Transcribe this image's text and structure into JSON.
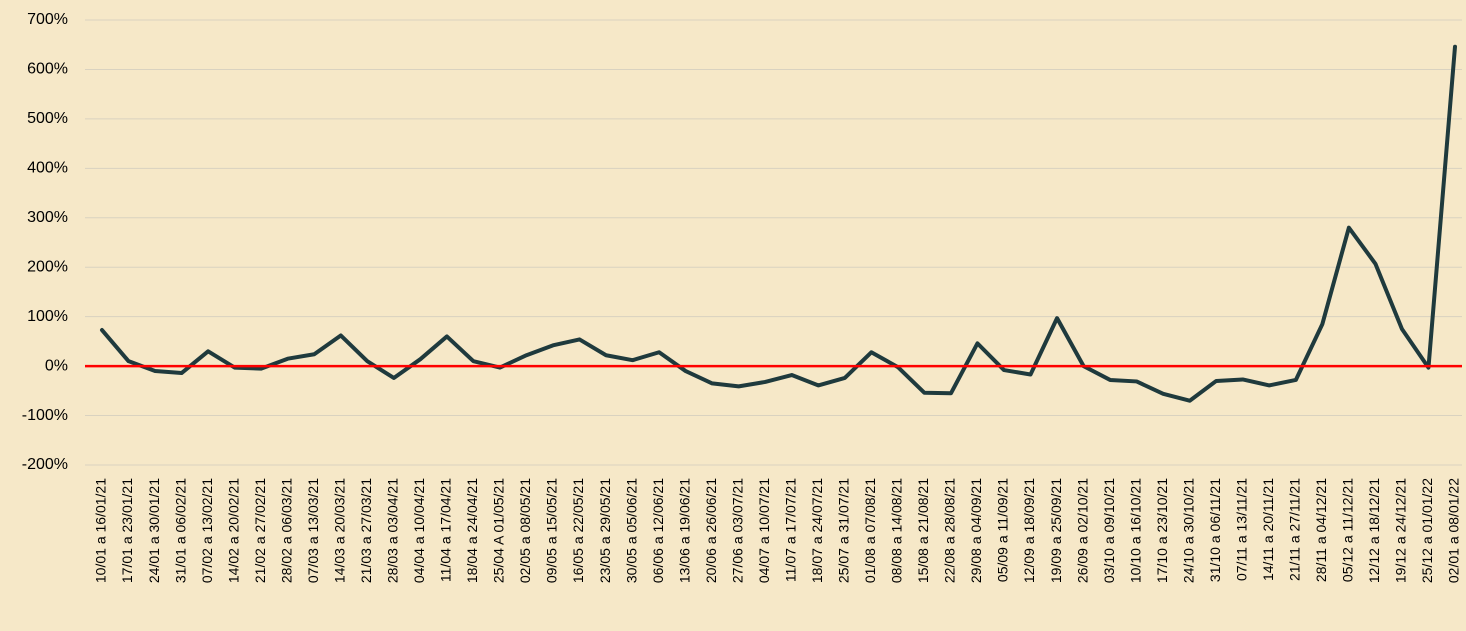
{
  "chart_data": {
    "type": "line",
    "categories": [
      "10/01 a 16/01/21",
      "17/01 a 23/01/21",
      "24/01 a 30/01/21",
      "31/01 a 06/02/21",
      "07/02 a 13/02/21",
      "14/02 a 20/02/21",
      "21/02 a 27/02/21",
      "28/02 a 06/03/21",
      "07/03 a 13/03/21",
      "14/03 a 20/03/21",
      "21/03 a 27/03/21",
      "28/03 a 03/04/21",
      "04/04 a 10/04/21",
      "11/04 a 17/04/21",
      "18/04 a 24/04/21",
      "25/04 A 01/05/21",
      "02/05 a 08/05/21",
      "09/05 a 15/05/21",
      "16/05 a 22/05/21",
      "23/05 a 29/05/21",
      "30/05 a 05/06/21",
      "06/06 a 12/06/21",
      "13/06 a 19/06/21",
      "20/06 a 26/06/21",
      "27/06 a 03/07/21",
      "04/07 a 10/07/21",
      "11/07 a 17/07/21",
      "18/07 a 24/07/21",
      "25/07 a 31/07/21",
      "01/08 a 07/08/21",
      "08/08 a 14/08/21",
      "15/08 a 21/08/21",
      "22/08 a 28/08/21",
      "29/08 a 04/09/21",
      "05/09 a 11/09/21",
      "12/09 a 18/09/21",
      "19/09 a 25/09/21",
      "26/09 a 02/10/21",
      "03/10 a 09/10/21",
      "10/10 a 16/10/21",
      "17/10 a 23/10/21",
      "24/10 a 30/10/21",
      "31/10 a 06/11/21",
      "07/11 a 13/11/21",
      "14/11 a 20/11/21",
      "21/11 a 27/11/21",
      "28/11 a 04/12/21",
      "05/12 a 11/12/21",
      "12/12 a 18/12/21",
      "19/12 a 24/12/21",
      "25/12 a 01/01/22",
      "02/01 a 08/01/22"
    ],
    "values": [
      73,
      10,
      -10,
      -14,
      30,
      -3,
      -5,
      15,
      24,
      62,
      10,
      -24,
      14,
      60,
      10,
      -3,
      22,
      42,
      54,
      22,
      12,
      28,
      -10,
      -35,
      -41,
      -32,
      -18,
      -39,
      -24,
      28,
      -2,
      -54,
      -55,
      46,
      -8,
      -17,
      97,
      0,
      -28,
      -31,
      -56,
      -70,
      -30,
      -27,
      -39,
      -28,
      85,
      280,
      207,
      75,
      -3,
      646
    ],
    "color": "#1f3a3d",
    "ylim": [
      -200,
      700
    ],
    "yticks": [
      {
        "value": -200,
        "label": "-200%"
      },
      {
        "value": -100,
        "label": "-100%"
      },
      {
        "value": 0,
        "label": "0%"
      },
      {
        "value": 100,
        "label": "100%"
      },
      {
        "value": 200,
        "label": "200%"
      },
      {
        "value": 300,
        "label": "300%"
      },
      {
        "value": 400,
        "label": "400%"
      },
      {
        "value": 500,
        "label": "500%"
      },
      {
        "value": 600,
        "label": "600%"
      },
      {
        "value": 700,
        "label": "700%"
      }
    ],
    "grid": true,
    "grid_color": "#d9d2c0",
    "zero_line_color": "#ff0000"
  }
}
